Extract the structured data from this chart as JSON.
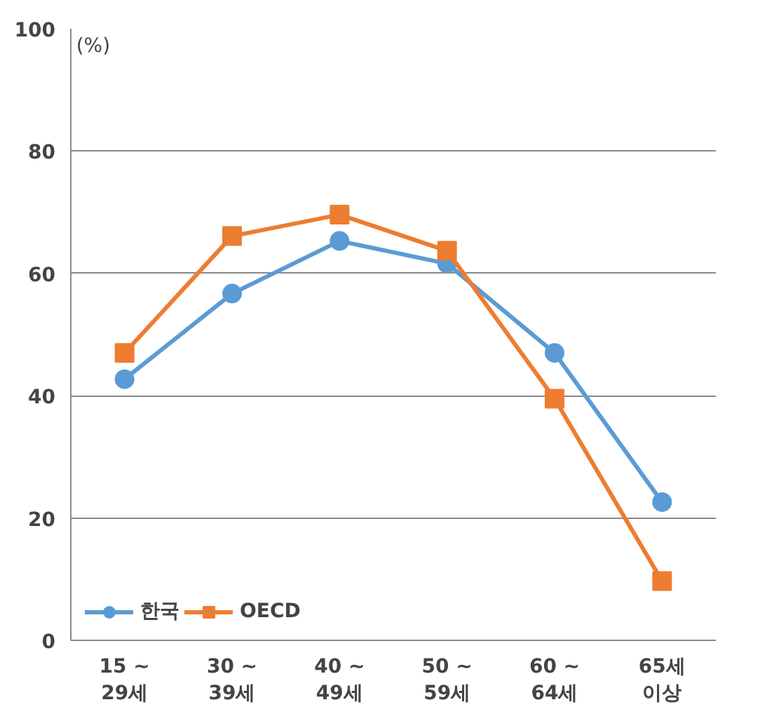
{
  "chart_data": {
    "type": "line",
    "categories": [
      "15 ~\n29세",
      "30 ~\n39세",
      "40 ~\n49세",
      "50 ~\n59세",
      "60 ~\n64세",
      "65세\n이상"
    ],
    "series": [
      {
        "name": "한국",
        "color": "#5b9bd5",
        "marker": "circle",
        "values": [
          42.7,
          56.7,
          65.3,
          61.6,
          47,
          22.6
        ]
      },
      {
        "name": "OECD",
        "color": "#ed7d31",
        "marker": "square",
        "values": [
          47,
          66.1,
          69.6,
          63.7,
          39.5,
          9.7
        ]
      }
    ],
    "ylim": [
      0,
      100
    ],
    "yticks": [
      0,
      20,
      40,
      60,
      80,
      100
    ],
    "grid": "y",
    "legend": "bottom left",
    "annotations": [
      "(%)"
    ]
  }
}
